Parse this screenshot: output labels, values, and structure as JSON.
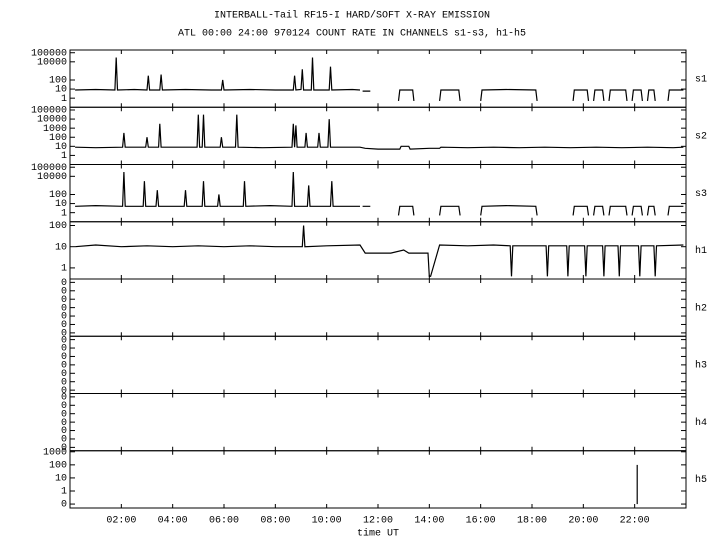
{
  "chart_data": {
    "type": "line",
    "title": "INTERBALL-Tail RF15-I HARD/SOFT X-RAY EMISSION",
    "subtitle": "ATL 00:00 24:00 970124  COUNT RATE IN CHANNELS s1-s3, h1-h5",
    "xlabel": "time UT",
    "color": "#000000",
    "xlim": [
      0,
      24
    ],
    "xticks": [
      {
        "value": 2,
        "label": "02:00"
      },
      {
        "value": 4,
        "label": "04:00"
      },
      {
        "value": 6,
        "label": "06:00"
      },
      {
        "value": 8,
        "label": "08:00"
      },
      {
        "value": 10,
        "label": "10:00"
      },
      {
        "value": 12,
        "label": "12:00"
      },
      {
        "value": 14,
        "label": "14:00"
      },
      {
        "value": 16,
        "label": "16:00"
      },
      {
        "value": 18,
        "label": "18:00"
      },
      {
        "value": 20,
        "label": "20:00"
      },
      {
        "value": 22,
        "label": "22:00"
      }
    ],
    "panels": [
      {
        "name": "s1",
        "log": true,
        "ylim": [
          0.1,
          200000
        ],
        "yticks": [
          1,
          10,
          100,
          10000,
          100000
        ],
        "x": [
          0.2,
          1,
          1.75,
          1.8,
          1.85,
          2.5,
          3.0,
          3.05,
          3.1,
          3.5,
          3.55,
          3.6,
          4.5,
          5.5,
          5.9,
          5.95,
          6.0,
          7,
          8,
          8.7,
          8.75,
          8.8,
          9.0,
          9.05,
          9.1,
          9.4,
          9.45,
          9.5,
          10.1,
          10.15,
          10.2,
          11,
          11.3,
          11.35,
          11.4,
          11.7,
          12.3,
          12.8,
          12.85,
          13.35,
          13.4,
          13.9,
          14.4,
          14.45,
          15.15,
          15.2,
          15.6,
          16.0,
          16.05,
          17.0,
          18.15,
          18.2,
          18.9,
          19.6,
          19.65,
          20.15,
          20.2,
          20.3,
          20.4,
          20.45,
          20.75,
          20.8,
          20.9,
          21.0,
          21.05,
          21.65,
          21.7,
          21.8,
          21.9,
          21.95,
          22.25,
          22.3,
          22.4,
          22.5,
          22.55,
          22.75,
          22.8,
          23.0,
          23.3,
          23.35,
          23.9
        ],
        "values": [
          8,
          9,
          8,
          30000,
          8,
          9,
          8,
          300,
          8,
          8,
          400,
          8,
          9,
          8,
          8,
          100,
          8,
          9,
          8,
          8,
          300,
          8,
          9,
          1500,
          8,
          8,
          30000,
          8,
          8,
          3000,
          8,
          9,
          8,
          null,
          6,
          6,
          null,
          0.5,
          8,
          8,
          0.5,
          null,
          0.5,
          8,
          8,
          0.5,
          null,
          0.5,
          8,
          9,
          8,
          0.5,
          null,
          0.5,
          8,
          8,
          0.5,
          null,
          0.5,
          8,
          8,
          0.5,
          null,
          0.5,
          8,
          8,
          0.5,
          null,
          0.5,
          8,
          8,
          0.5,
          null,
          0.5,
          8,
          8,
          0.5,
          null,
          0.5,
          8,
          8
        ]
      },
      {
        "name": "s2",
        "log": true,
        "ylim": [
          0.1,
          200000
        ],
        "yticks": [
          1,
          10,
          100,
          1000,
          10000,
          100000
        ],
        "x": [
          0.2,
          1,
          2.05,
          2.1,
          2.15,
          2.95,
          3.0,
          3.05,
          3.45,
          3.5,
          3.55,
          4.95,
          5.0,
          5.05,
          5.15,
          5.2,
          5.25,
          5.85,
          5.9,
          5.95,
          6.45,
          6.5,
          6.55,
          7.5,
          8.65,
          8.7,
          8.75,
          8.8,
          8.85,
          9.15,
          9.2,
          9.25,
          9.65,
          9.7,
          9.75,
          10.05,
          10.1,
          10.15,
          11.3,
          11.5,
          12.0,
          12.5,
          12.85,
          12.9,
          13.2,
          13.25,
          14.0,
          14.4,
          14.45,
          15.5,
          16.5,
          17.5,
          18.5,
          19.5,
          20.5,
          21.5,
          22.5,
          23.5,
          23.9
        ],
        "values": [
          8,
          7,
          8,
          300,
          8,
          8,
          100,
          8,
          8,
          3000,
          8,
          8,
          30000,
          8,
          8,
          30000,
          8,
          8,
          100,
          8,
          8,
          30000,
          8,
          7,
          8,
          3000,
          8,
          2000,
          8,
          8,
          300,
          8,
          8,
          300,
          8,
          8,
          10000,
          8,
          8,
          6,
          5,
          5,
          5,
          10,
          10,
          5,
          6,
          6,
          8,
          7,
          8,
          7,
          8,
          7,
          8,
          7,
          8,
          7,
          8
        ]
      },
      {
        "name": "s3",
        "log": true,
        "ylim": [
          0.1,
          200000
        ],
        "yticks": [
          1,
          10,
          100,
          10000,
          100000
        ],
        "x": [
          0.2,
          1,
          2.05,
          2.1,
          2.15,
          2.85,
          2.9,
          2.95,
          3.35,
          3.4,
          3.45,
          4.45,
          4.5,
          4.55,
          5.15,
          5.2,
          5.25,
          5.75,
          5.8,
          5.85,
          6.75,
          6.8,
          6.85,
          7.8,
          8.65,
          8.7,
          8.75,
          9.25,
          9.3,
          9.35,
          10.15,
          10.2,
          10.25,
          11.3,
          11.35,
          11.4,
          11.7,
          12.3,
          12.8,
          12.85,
          13.35,
          13.4,
          13.9,
          14.4,
          14.45,
          15.15,
          15.2,
          15.6,
          16.0,
          16.05,
          17.0,
          18.15,
          18.2,
          18.9,
          19.6,
          19.65,
          20.15,
          20.2,
          20.3,
          20.4,
          20.45,
          20.75,
          20.8,
          20.9,
          21.0,
          21.05,
          21.65,
          21.7,
          21.8,
          21.9,
          21.95,
          22.25,
          22.3,
          22.4,
          22.5,
          22.55,
          22.75,
          22.8,
          23.0,
          23.3,
          23.35,
          23.9
        ],
        "values": [
          5,
          6,
          5,
          30000,
          5,
          5,
          3000,
          5,
          5,
          300,
          5,
          5,
          300,
          5,
          5,
          3000,
          5,
          5,
          100,
          5,
          5,
          3000,
          5,
          6,
          5,
          30000,
          5,
          5,
          1000,
          5,
          5,
          3000,
          5,
          5,
          null,
          5,
          5,
          null,
          0.5,
          5,
          5,
          0.5,
          null,
          0.5,
          5,
          5,
          0.5,
          null,
          0.5,
          5,
          6,
          5,
          0.5,
          null,
          0.5,
          5,
          5,
          0.5,
          null,
          0.5,
          5,
          5,
          0.5,
          null,
          0.5,
          5,
          5,
          0.5,
          null,
          0.5,
          5,
          5,
          0.5,
          null,
          0.5,
          5,
          5,
          0.5,
          null,
          0.5,
          5,
          5
        ]
      },
      {
        "name": "h1",
        "log": true,
        "ylim": [
          0.3,
          150
        ],
        "yticks": [
          1,
          10,
          100
        ],
        "x": [
          0.2,
          1,
          2,
          3,
          4,
          5,
          6,
          7,
          8,
          9.05,
          9.1,
          9.15,
          10,
          11.3,
          11.5,
          12.5,
          13.0,
          13.2,
          13.95,
          14.0,
          14.05,
          14.4,
          15.5,
          16.5,
          17.15,
          17.2,
          17.25,
          18.55,
          18.6,
          18.65,
          19.35,
          19.4,
          19.45,
          20.05,
          20.1,
          20.15,
          20.75,
          20.8,
          20.85,
          21.35,
          21.4,
          21.45,
          22.15,
          22.2,
          22.25,
          22.75,
          22.8,
          22.85,
          23.9
        ],
        "values": [
          10,
          12,
          10,
          11,
          10,
          11,
          10,
          11,
          10,
          10,
          100,
          10,
          11,
          12,
          5,
          5,
          7,
          5,
          5,
          0.4,
          0.4,
          12,
          11,
          12,
          11,
          0.4,
          11,
          11,
          0.4,
          11,
          11,
          0.4,
          11,
          11,
          0.4,
          11,
          11,
          0.4,
          11,
          11,
          0.4,
          11,
          11,
          0.4,
          11,
          11,
          0.4,
          11,
          12
        ]
      },
      {
        "name": "h2",
        "log": false,
        "ylim": [
          -0.02,
          0.32
        ],
        "yticks": [
          {
            "value": 0,
            "label": "0"
          },
          {
            "value": 0.05,
            "label": "0"
          },
          {
            "value": 0.1,
            "label": "0"
          },
          {
            "value": 0.15,
            "label": "0"
          },
          {
            "value": 0.2,
            "label": "0"
          },
          {
            "value": 0.25,
            "label": "0"
          },
          {
            "value": 0.3,
            "label": "0"
          }
        ]
      },
      {
        "name": "h3",
        "log": false,
        "ylim": [
          -0.02,
          0.32
        ],
        "yticks": [
          {
            "value": 0,
            "label": "0"
          },
          {
            "value": 0.05,
            "label": "0"
          },
          {
            "value": 0.1,
            "label": "0"
          },
          {
            "value": 0.15,
            "label": "0"
          },
          {
            "value": 0.2,
            "label": "0"
          },
          {
            "value": 0.25,
            "label": "0"
          },
          {
            "value": 0.3,
            "label": "0"
          }
        ]
      },
      {
        "name": "h4",
        "log": false,
        "ylim": [
          -0.02,
          0.32
        ],
        "yticks": [
          {
            "value": 0,
            "label": "0"
          },
          {
            "value": 0.05,
            "label": "0"
          },
          {
            "value": 0.1,
            "label": "0"
          },
          {
            "value": 0.15,
            "label": "0"
          },
          {
            "value": 0.2,
            "label": "0"
          },
          {
            "value": 0.25,
            "label": "0"
          },
          {
            "value": 0.3,
            "label": "0"
          }
        ]
      },
      {
        "name": "h5",
        "log": true,
        "ylim": [
          0.05,
          1200
        ],
        "yticks": [
          {
            "value": 0.1,
            "label": "0"
          },
          1,
          10,
          100,
          1000
        ],
        "x": [
          22.1,
          22.1
        ],
        "values": [
          0.1,
          100
        ]
      }
    ]
  }
}
